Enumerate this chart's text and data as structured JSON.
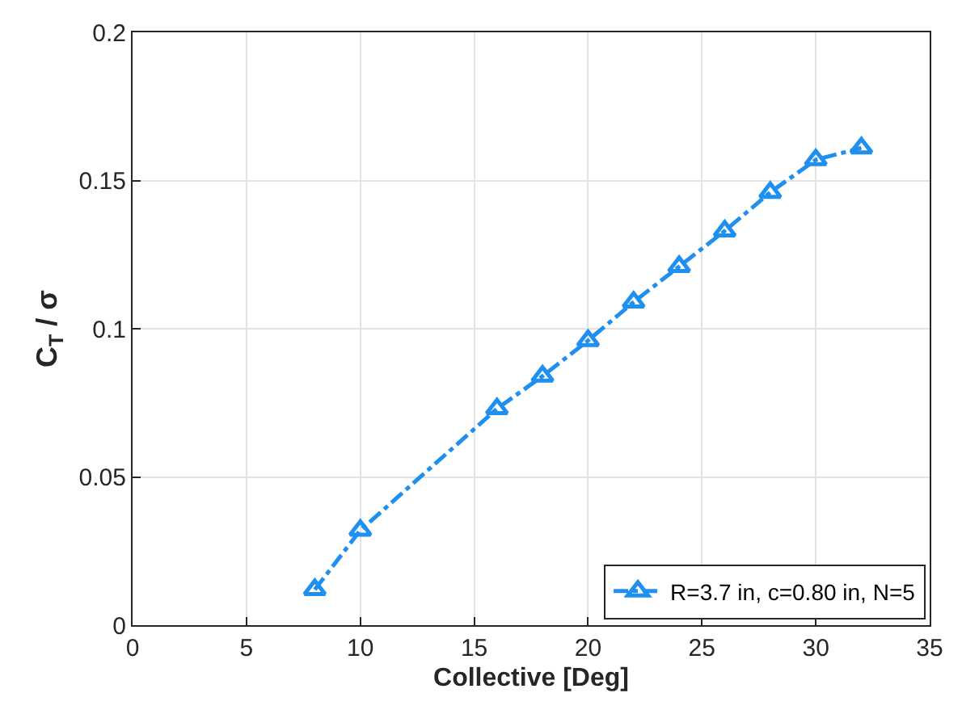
{
  "chart_data": {
    "type": "line",
    "xlabel": "Collective [Deg]",
    "ylabel": "C$_{T}$ / σ",
    "x": [
      8,
      10,
      16,
      18,
      20,
      22,
      24,
      26,
      28,
      30,
      32
    ],
    "series": [
      {
        "name": "R=3.7 in, c=0.80 in, N=5",
        "color": "#1f8ff0",
        "values": [
          0.012,
          0.032,
          0.073,
          0.084,
          0.096,
          0.109,
          0.121,
          0.133,
          0.146,
          0.157,
          0.161
        ]
      }
    ],
    "xlim": [
      0,
      35
    ],
    "xticks": [
      0,
      5,
      10,
      15,
      20,
      25,
      30,
      35
    ],
    "ylim": [
      0,
      0.2
    ],
    "yticks": [
      0,
      0.05,
      0.1,
      0.15,
      0.2
    ],
    "grid": true,
    "legend": "bottom right",
    "marker": "triangle",
    "line_style": "dashdot"
  }
}
